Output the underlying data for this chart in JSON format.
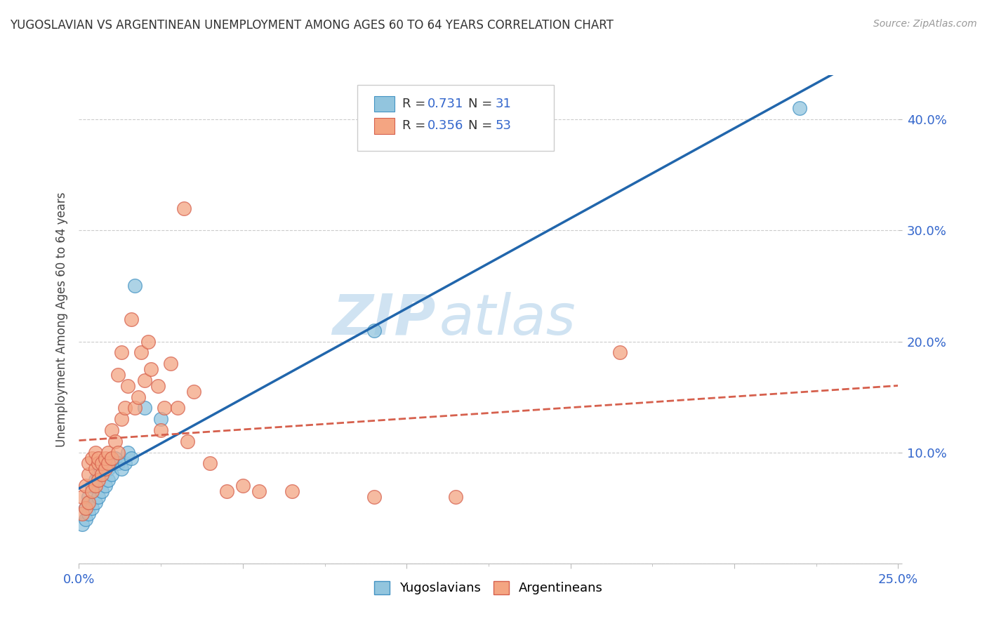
{
  "title": "YUGOSLAVIAN VS ARGENTINEAN UNEMPLOYMENT AMONG AGES 60 TO 64 YEARS CORRELATION CHART",
  "source": "Source: ZipAtlas.com",
  "ylabel": "Unemployment Among Ages 60 to 64 years",
  "xlim": [
    0.0,
    0.25
  ],
  "ylim": [
    0.0,
    0.44
  ],
  "yug_color": "#92c5de",
  "yug_edge_color": "#4393c3",
  "arg_color": "#f4a582",
  "arg_edge_color": "#d6604d",
  "yug_line_color": "#2166ac",
  "arg_line_color": "#d6604d",
  "watermark_zip": "ZIP",
  "watermark_atlas": "atlas",
  "watermark_zip_color": "#c8dff0",
  "watermark_atlas_color": "#c8dff0",
  "background_color": "#ffffff",
  "grid_color": "#cccccc",
  "title_color": "#333333",
  "source_color": "#999999",
  "label_color": "#3366cc",
  "yug_scatter_x": [
    0.001,
    0.002,
    0.002,
    0.003,
    0.003,
    0.003,
    0.004,
    0.004,
    0.005,
    0.005,
    0.006,
    0.006,
    0.007,
    0.007,
    0.008,
    0.008,
    0.009,
    0.009,
    0.01,
    0.01,
    0.011,
    0.012,
    0.013,
    0.014,
    0.015,
    0.016,
    0.017,
    0.02,
    0.025,
    0.09,
    0.22
  ],
  "yug_scatter_y": [
    0.035,
    0.04,
    0.05,
    0.045,
    0.055,
    0.06,
    0.05,
    0.07,
    0.055,
    0.075,
    0.06,
    0.08,
    0.065,
    0.09,
    0.07,
    0.085,
    0.075,
    0.085,
    0.08,
    0.09,
    0.095,
    0.09,
    0.085,
    0.09,
    0.1,
    0.095,
    0.25,
    0.14,
    0.13,
    0.21,
    0.41
  ],
  "arg_scatter_x": [
    0.001,
    0.001,
    0.002,
    0.002,
    0.003,
    0.003,
    0.003,
    0.004,
    0.004,
    0.005,
    0.005,
    0.005,
    0.006,
    0.006,
    0.006,
    0.007,
    0.007,
    0.008,
    0.008,
    0.009,
    0.009,
    0.01,
    0.01,
    0.011,
    0.012,
    0.012,
    0.013,
    0.013,
    0.014,
    0.015,
    0.016,
    0.017,
    0.018,
    0.019,
    0.02,
    0.021,
    0.022,
    0.024,
    0.025,
    0.026,
    0.028,
    0.03,
    0.032,
    0.033,
    0.035,
    0.04,
    0.045,
    0.05,
    0.055,
    0.065,
    0.09,
    0.115,
    0.165
  ],
  "arg_scatter_y": [
    0.045,
    0.06,
    0.05,
    0.07,
    0.055,
    0.08,
    0.09,
    0.065,
    0.095,
    0.07,
    0.085,
    0.1,
    0.075,
    0.09,
    0.095,
    0.08,
    0.09,
    0.085,
    0.095,
    0.09,
    0.1,
    0.095,
    0.12,
    0.11,
    0.1,
    0.17,
    0.13,
    0.19,
    0.14,
    0.16,
    0.22,
    0.14,
    0.15,
    0.19,
    0.165,
    0.2,
    0.175,
    0.16,
    0.12,
    0.14,
    0.18,
    0.14,
    0.32,
    0.11,
    0.155,
    0.09,
    0.065,
    0.07,
    0.065,
    0.065,
    0.06,
    0.06,
    0.19
  ]
}
